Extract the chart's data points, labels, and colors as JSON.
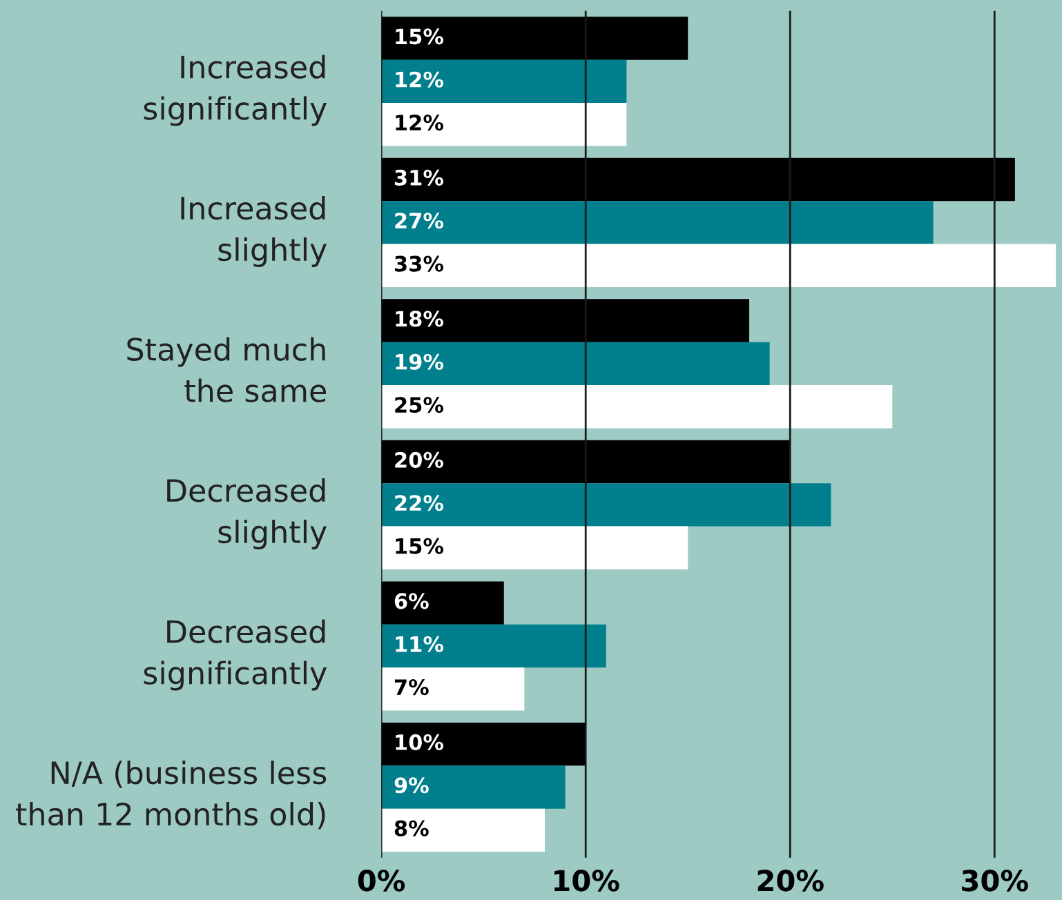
{
  "chart_data": {
    "type": "bar",
    "orientation": "horizontal",
    "categories": [
      "Increased\nsignificantly",
      "Increased\nslightly",
      "Stayed much\nthe same",
      "Decreased\nslightly",
      "Decreased\nsignificantly",
      "N/A (business less\nthan 12 months old)"
    ],
    "series": [
      {
        "color": "#000000",
        "values": [
          15,
          31,
          18,
          20,
          6,
          10
        ],
        "value_labels": [
          "15%",
          "31%",
          "18%",
          "20%",
          "6%",
          "10%"
        ]
      },
      {
        "color": "#027f8d",
        "values": [
          12,
          27,
          19,
          22,
          11,
          9
        ],
        "value_labels": [
          "12%",
          "27%",
          "19%",
          "22%",
          "11%",
          "9%"
        ]
      },
      {
        "color": "#ffffff",
        "values": [
          12,
          33,
          25,
          15,
          7,
          8
        ],
        "value_labels": [
          "12%",
          "33%",
          "25%",
          "15%",
          "7%",
          "8%"
        ]
      }
    ],
    "xlim": [
      0,
      33.3
    ],
    "xticks": [
      {
        "value": 0,
        "label": "0%"
      },
      {
        "value": 10,
        "label": "10%"
      },
      {
        "value": 20,
        "label": "20%"
      },
      {
        "value": 30,
        "label": "30%"
      }
    ],
    "grid": "x"
  }
}
